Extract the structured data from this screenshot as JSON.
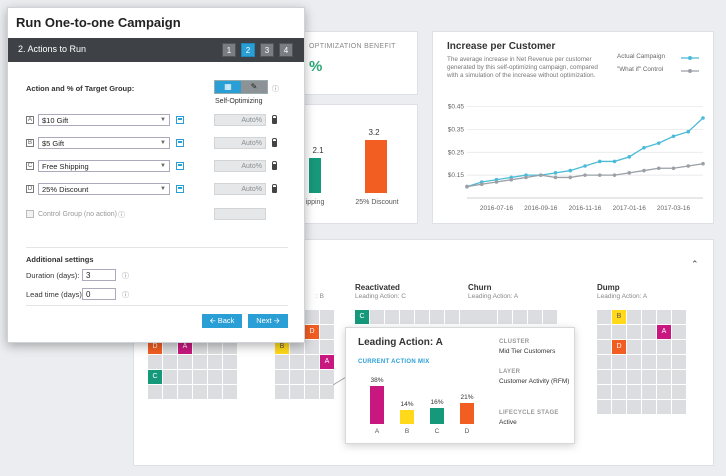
{
  "background": {
    "opt_benefit": {
      "label": "OPTIMIZATION BENEFIT",
      "value": "%"
    },
    "mini_chart": {
      "bars": [
        {
          "value_text": "",
          "value": 2.1,
          "category": "Free Shipping",
          "color": "#16987b",
          "value_label": "2.1"
        },
        {
          "value_text": "3.2",
          "value": 3.2,
          "category": "25% Discount",
          "color": "#f25e22"
        }
      ]
    },
    "increase_per_customer": {
      "title": "Increase per Customer",
      "description": "The average increase in Net Revenue per customer generated by this self-optimizing campaign, compared with a simulation of the increase without optimization.",
      "legend": [
        {
          "name": "Actual Campaign",
          "color": "#4bbbd8"
        },
        {
          "name": "\"What if\" Control",
          "color": "#9aa0a6"
        }
      ]
    }
  },
  "chart_data": {
    "type": "line",
    "x": [
      "2016-06-05",
      "2016-06-26",
      "2016-07-16",
      "2016-08-06",
      "2016-08-27",
      "2016-09-16",
      "2016-10-07",
      "2016-10-28",
      "2016-11-16",
      "2016-12-07",
      "2016-12-28",
      "2017-01-16",
      "2017-02-06",
      "2017-02-27",
      "2017-03-16",
      "2017-04-06",
      "2017-04-27"
    ],
    "xticks": [
      "2016-07-16",
      "2016-09-16",
      "2016-11-16",
      "2017-01-16",
      "2017-03-16"
    ],
    "yticks": [
      "$0.45",
      "$0.35",
      "$0.25",
      "$0.15"
    ],
    "ylim": [
      0.05,
      0.47
    ],
    "series": [
      {
        "name": "Actual Campaign",
        "color": "#4bbbd8",
        "values": [
          0.1,
          0.12,
          0.13,
          0.14,
          0.15,
          0.15,
          0.16,
          0.17,
          0.19,
          0.21,
          0.21,
          0.23,
          0.27,
          0.29,
          0.32,
          0.34,
          0.4
        ]
      },
      {
        "name": "\"What if\" Control",
        "color": "#9aa0a6",
        "values": [
          0.1,
          0.11,
          0.12,
          0.13,
          0.14,
          0.15,
          0.14,
          0.14,
          0.15,
          0.15,
          0.15,
          0.16,
          0.17,
          0.18,
          0.18,
          0.19,
          0.2
        ]
      }
    ],
    "grid": true
  },
  "segments": [
    {
      "title": "",
      "sub": ": B"
    },
    {
      "title": "Reactivated",
      "sub": "Leading Action: C"
    },
    {
      "title": "Churn",
      "sub": "Leading Action: A"
    },
    {
      "title": "Dump",
      "sub": "Leading Action: A"
    }
  ],
  "popup": {
    "title": "Leading Action: A",
    "subtitle": "CURRENT ACTION MIX",
    "mix": [
      {
        "cat": "A",
        "value": 38,
        "label": "38%",
        "color": "#c8187f"
      },
      {
        "cat": "B",
        "value": 14,
        "label": "14%",
        "color": "#ffd91a"
      },
      {
        "cat": "C",
        "value": 16,
        "label": "16%",
        "color": "#16987b"
      },
      {
        "cat": "D",
        "value": 21,
        "label": "21%",
        "color": "#f25e22"
      }
    ],
    "details": [
      {
        "label": "CLUSTER",
        "value": "Mid Tier Customers"
      },
      {
        "label": "LAYER",
        "value": "Customer Activity (RFM)"
      },
      {
        "label": "LIFECYCLE STAGE",
        "value": "Active"
      }
    ]
  },
  "wizard": {
    "title": "Run One-to-one Campaign",
    "step_label": "2. Actions to Run",
    "steps": [
      "1",
      "2",
      "3",
      "4"
    ],
    "active_step": "2",
    "section_label": "Action and % of Target Group:",
    "toggle_caption": "Self-Optimizing",
    "toggle_icons": {
      "selected": "grid-icon",
      "other": "pencil-icon"
    },
    "actions": [
      {
        "letter": "A",
        "value": "$10 Gift",
        "auto": "Auto%"
      },
      {
        "letter": "B",
        "value": "$5 Gift",
        "auto": "Auto%"
      },
      {
        "letter": "C",
        "value": "Free Shipping",
        "auto": "Auto%"
      },
      {
        "letter": "D",
        "value": "25% Discount",
        "auto": "Auto%"
      }
    ],
    "control_group": "Control Group (no action)",
    "additional": "Additional settings",
    "duration_label": "Duration (days):",
    "duration_value": "3",
    "lead_label": "Lead time (days):",
    "lead_value": "0",
    "back_label": "Back",
    "next_label": "Next"
  }
}
